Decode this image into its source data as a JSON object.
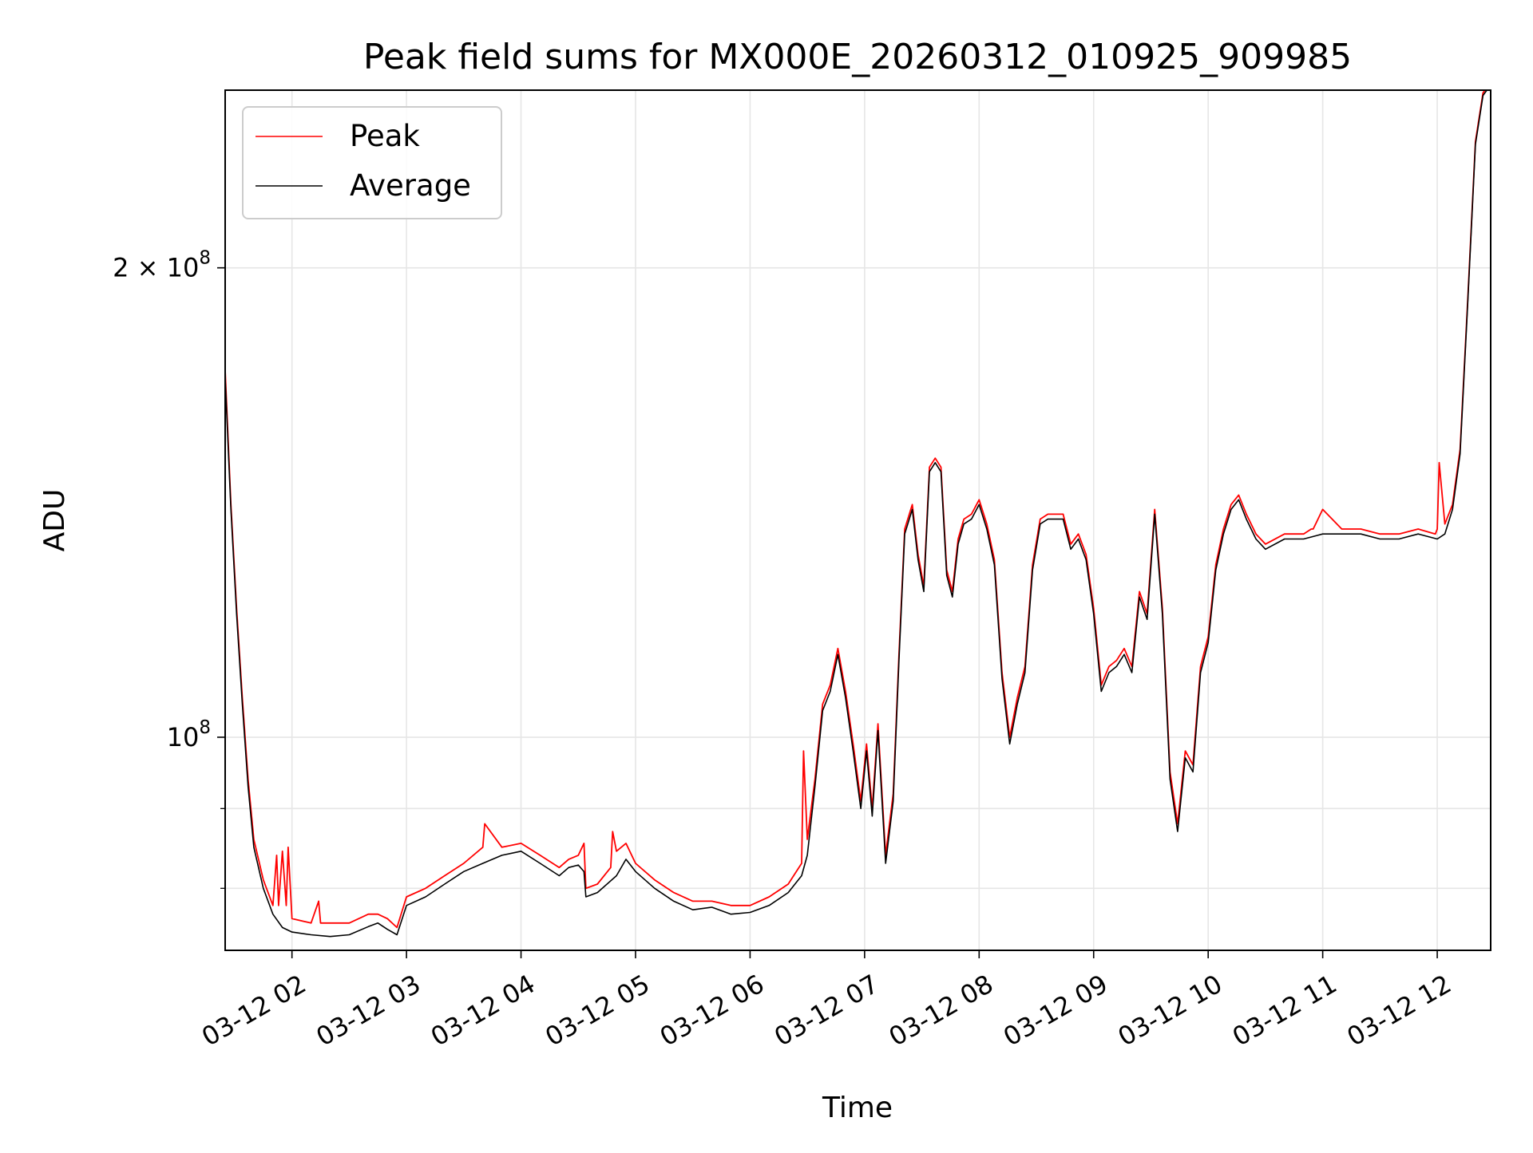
{
  "chart_data": {
    "type": "line",
    "title": "Peak field sums for MX000E_20260312_010925_909985",
    "xlabel": "Time",
    "ylabel": "ADU",
    "y_scale": "log",
    "xlim": [
      "2026-03-12 01:25",
      "2026-03-12 12:28"
    ],
    "ylim": [
      73000000,
      260000000
    ],
    "grid": true,
    "legend": {
      "placement": "top-left",
      "entries": [
        "Peak",
        "Average"
      ]
    },
    "x_ticks": [
      "03-12 02",
      "03-12 03",
      "03-12 04",
      "03-12 05",
      "03-12 06",
      "03-12 07",
      "03-12 08",
      "03-12 09",
      "03-12 10",
      "03-12 11",
      "03-12 12"
    ],
    "y_ticks": [
      {
        "value": 100000000,
        "mantissa": "",
        "exponent": "8"
      },
      {
        "value": 200000000,
        "mantissa": "2",
        "exponent": "8"
      }
    ],
    "colors": {
      "peak": "#ff0000",
      "average": "#000000"
    },
    "series": [
      {
        "name": "Average",
        "color": "#000000",
        "x": [
          "2026-03-12 01:25",
          "2026-03-12 01:28",
          "2026-03-12 01:31",
          "2026-03-12 01:34",
          "2026-03-12 01:37",
          "2026-03-12 01:40",
          "2026-03-12 01:45",
          "2026-03-12 01:50",
          "2026-03-12 01:55",
          "2026-03-12 02:00",
          "2026-03-12 02:10",
          "2026-03-12 02:20",
          "2026-03-12 02:30",
          "2026-03-12 02:40",
          "2026-03-12 02:45",
          "2026-03-12 02:50",
          "2026-03-12 02:55",
          "2026-03-12 03:00",
          "2026-03-12 03:10",
          "2026-03-12 03:20",
          "2026-03-12 03:30",
          "2026-03-12 03:40",
          "2026-03-12 03:50",
          "2026-03-12 04:00",
          "2026-03-12 04:10",
          "2026-03-12 04:20",
          "2026-03-12 04:25",
          "2026-03-12 04:30",
          "2026-03-12 04:33",
          "2026-03-12 04:34",
          "2026-03-12 04:40",
          "2026-03-12 04:50",
          "2026-03-12 04:55",
          "2026-03-12 05:00",
          "2026-03-12 05:10",
          "2026-03-12 05:20",
          "2026-03-12 05:30",
          "2026-03-12 05:40",
          "2026-03-12 05:50",
          "2026-03-12 06:00",
          "2026-03-12 06:10",
          "2026-03-12 06:20",
          "2026-03-12 06:27",
          "2026-03-12 06:30",
          "2026-03-12 06:34",
          "2026-03-12 06:38",
          "2026-03-12 06:42",
          "2026-03-12 06:46",
          "2026-03-12 06:50",
          "2026-03-12 06:54",
          "2026-03-12 06:58",
          "2026-03-12 07:01",
          "2026-03-12 07:04",
          "2026-03-12 07:07",
          "2026-03-12 07:11",
          "2026-03-12 07:15",
          "2026-03-12 07:18",
          "2026-03-12 07:21",
          "2026-03-12 07:25",
          "2026-03-12 07:28",
          "2026-03-12 07:31",
          "2026-03-12 07:34",
          "2026-03-12 07:37",
          "2026-03-12 07:40",
          "2026-03-12 07:43",
          "2026-03-12 07:46",
          "2026-03-12 07:49",
          "2026-03-12 07:52",
          "2026-03-12 07:56",
          "2026-03-12 08:00",
          "2026-03-12 08:04",
          "2026-03-12 08:08",
          "2026-03-12 08:12",
          "2026-03-12 08:16",
          "2026-03-12 08:20",
          "2026-03-12 08:24",
          "2026-03-12 08:28",
          "2026-03-12 08:32",
          "2026-03-12 08:36",
          "2026-03-12 08:40",
          "2026-03-12 08:44",
          "2026-03-12 08:48",
          "2026-03-12 08:52",
          "2026-03-12 08:56",
          "2026-03-12 09:00",
          "2026-03-12 09:04",
          "2026-03-12 09:08",
          "2026-03-12 09:12",
          "2026-03-12 09:16",
          "2026-03-12 09:20",
          "2026-03-12 09:24",
          "2026-03-12 09:28",
          "2026-03-12 09:32",
          "2026-03-12 09:36",
          "2026-03-12 09:40",
          "2026-03-12 09:44",
          "2026-03-12 09:48",
          "2026-03-12 09:52",
          "2026-03-12 09:56",
          "2026-03-12 10:00",
          "2026-03-12 10:04",
          "2026-03-12 10:08",
          "2026-03-12 10:12",
          "2026-03-12 10:16",
          "2026-03-12 10:20",
          "2026-03-12 10:25",
          "2026-03-12 10:30",
          "2026-03-12 10:40",
          "2026-03-12 10:50",
          "2026-03-12 11:00",
          "2026-03-12 11:10",
          "2026-03-12 11:20",
          "2026-03-12 11:30",
          "2026-03-12 11:40",
          "2026-03-12 11:50",
          "2026-03-12 12:00",
          "2026-03-12 12:04",
          "2026-03-12 12:08",
          "2026-03-12 12:12",
          "2026-03-12 12:16",
          "2026-03-12 12:20",
          "2026-03-12 12:24",
          "2026-03-12 12:28"
        ],
        "values": [
          170000000,
          140000000,
          120000000,
          105000000,
          93000000,
          85000000,
          80000000,
          77000000,
          75500000,
          75000000,
          74700000,
          74500000,
          74700000,
          75600000,
          76000000,
          75300000,
          74700000,
          78000000,
          79000000,
          80500000,
          82000000,
          83000000,
          84000000,
          84500000,
          83000000,
          81500000,
          82500000,
          82800000,
          82000000,
          79000000,
          79500000,
          81500000,
          83500000,
          82000000,
          80000000,
          78500000,
          77500000,
          77800000,
          77000000,
          77200000,
          78000000,
          79500000,
          81500000,
          84000000,
          93000000,
          104000000,
          107000000,
          113000000,
          106000000,
          98000000,
          90000000,
          98000000,
          89000000,
          101000000,
          83000000,
          91000000,
          112000000,
          135000000,
          140000000,
          130000000,
          124000000,
          148000000,
          150000000,
          148000000,
          127000000,
          123000000,
          133000000,
          137000000,
          138000000,
          141000000,
          136000000,
          129000000,
          109000000,
          99000000,
          105000000,
          110000000,
          128000000,
          137000000,
          138000000,
          138000000,
          138000000,
          132000000,
          134000000,
          130000000,
          120000000,
          107000000,
          110000000,
          111000000,
          113000000,
          110000000,
          123000000,
          119000000,
          139000000,
          120000000,
          94000000,
          87000000,
          97000000,
          95000000,
          110000000,
          115000000,
          128000000,
          135000000,
          140000000,
          142000000,
          138000000,
          134000000,
          132000000,
          134000000,
          134000000,
          135000000,
          135000000,
          135000000,
          134000000,
          134000000,
          135000000,
          134000000,
          135000000,
          140000000,
          152000000,
          190000000,
          240000000,
          258000000,
          262000000
        ]
      },
      {
        "name": "Peak",
        "color": "#ff0000",
        "x": [
          "2026-03-12 01:25",
          "2026-03-12 01:28",
          "2026-03-12 01:31",
          "2026-03-12 01:34",
          "2026-03-12 01:37",
          "2026-03-12 01:40",
          "2026-03-12 01:45",
          "2026-03-12 01:50",
          "2026-03-12 01:52",
          "2026-03-12 01:53",
          "2026-03-12 01:55",
          "2026-03-12 01:57",
          "2026-03-12 01:58",
          "2026-03-12 02:00",
          "2026-03-12 02:10",
          "2026-03-12 02:14",
          "2026-03-12 02:15",
          "2026-03-12 02:20",
          "2026-03-12 02:30",
          "2026-03-12 02:40",
          "2026-03-12 02:45",
          "2026-03-12 02:50",
          "2026-03-12 02:55",
          "2026-03-12 03:00",
          "2026-03-12 03:10",
          "2026-03-12 03:20",
          "2026-03-12 03:30",
          "2026-03-12 03:40",
          "2026-03-12 03:41",
          "2026-03-12 03:50",
          "2026-03-12 04:00",
          "2026-03-12 04:10",
          "2026-03-12 04:20",
          "2026-03-12 04:25",
          "2026-03-12 04:30",
          "2026-03-12 04:33",
          "2026-03-12 04:34",
          "2026-03-12 04:40",
          "2026-03-12 04:47",
          "2026-03-12 04:48",
          "2026-03-12 04:50",
          "2026-03-12 04:55",
          "2026-03-12 05:00",
          "2026-03-12 05:10",
          "2026-03-12 05:20",
          "2026-03-12 05:30",
          "2026-03-12 05:40",
          "2026-03-12 05:50",
          "2026-03-12 06:00",
          "2026-03-12 06:10",
          "2026-03-12 06:20",
          "2026-03-12 06:27",
          "2026-03-12 06:28",
          "2026-03-12 06:30",
          "2026-03-12 06:34",
          "2026-03-12 06:38",
          "2026-03-12 06:42",
          "2026-03-12 06:46",
          "2026-03-12 06:50",
          "2026-03-12 06:54",
          "2026-03-12 06:58",
          "2026-03-12 07:01",
          "2026-03-12 07:04",
          "2026-03-12 07:07",
          "2026-03-12 07:11",
          "2026-03-12 07:15",
          "2026-03-12 07:18",
          "2026-03-12 07:21",
          "2026-03-12 07:25",
          "2026-03-12 07:28",
          "2026-03-12 07:31",
          "2026-03-12 07:34",
          "2026-03-12 07:37",
          "2026-03-12 07:40",
          "2026-03-12 07:43",
          "2026-03-12 07:46",
          "2026-03-12 07:49",
          "2026-03-12 07:52",
          "2026-03-12 07:56",
          "2026-03-12 08:00",
          "2026-03-12 08:04",
          "2026-03-12 08:08",
          "2026-03-12 08:12",
          "2026-03-12 08:16",
          "2026-03-12 08:20",
          "2026-03-12 08:24",
          "2026-03-12 08:28",
          "2026-03-12 08:32",
          "2026-03-12 08:36",
          "2026-03-12 08:40",
          "2026-03-12 08:44",
          "2026-03-12 08:48",
          "2026-03-12 08:52",
          "2026-03-12 08:56",
          "2026-03-12 09:00",
          "2026-03-12 09:04",
          "2026-03-12 09:08",
          "2026-03-12 09:12",
          "2026-03-12 09:16",
          "2026-03-12 09:20",
          "2026-03-12 09:24",
          "2026-03-12 09:28",
          "2026-03-12 09:32",
          "2026-03-12 09:36",
          "2026-03-12 09:40",
          "2026-03-12 09:44",
          "2026-03-12 09:48",
          "2026-03-12 09:52",
          "2026-03-12 09:56",
          "2026-03-12 10:00",
          "2026-03-12 10:04",
          "2026-03-12 10:08",
          "2026-03-12 10:12",
          "2026-03-12 10:16",
          "2026-03-12 10:20",
          "2026-03-12 10:25",
          "2026-03-12 10:30",
          "2026-03-12 10:40",
          "2026-03-12 10:50",
          "2026-03-12 10:54",
          "2026-03-12 10:55",
          "2026-03-12 11:00",
          "2026-03-12 11:10",
          "2026-03-12 11:20",
          "2026-03-12 11:30",
          "2026-03-12 11:40",
          "2026-03-12 11:50",
          "2026-03-12 11:59",
          "2026-03-12 12:00",
          "2026-03-12 12:01",
          "2026-03-12 12:04",
          "2026-03-12 12:08",
          "2026-03-12 12:12",
          "2026-03-12 12:16",
          "2026-03-12 12:20",
          "2026-03-12 12:24",
          "2026-03-12 12:28"
        ],
        "values": [
          172000000,
          141000000,
          121000000,
          106000000,
          94000000,
          86000000,
          81000000,
          78000000,
          84000000,
          78000000,
          84500000,
          78000000,
          85000000,
          76500000,
          76000000,
          78500000,
          76000000,
          76000000,
          76000000,
          77000000,
          77000000,
          76500000,
          75500000,
          79000000,
          80000000,
          81500000,
          83000000,
          85000000,
          88000000,
          85000000,
          85500000,
          84000000,
          82500000,
          83500000,
          84000000,
          85500000,
          80000000,
          80500000,
          82500000,
          87000000,
          84500000,
          85500000,
          83000000,
          81000000,
          79500000,
          78500000,
          78500000,
          78000000,
          78000000,
          79000000,
          80500000,
          83000000,
          98000000,
          86000000,
          94000000,
          105000000,
          108000000,
          114000000,
          107000000,
          99000000,
          91000000,
          99000000,
          90000000,
          102000000,
          84000000,
          92000000,
          113000000,
          136000000,
          141000000,
          131000000,
          125000000,
          149000000,
          151000000,
          149000000,
          128000000,
          124000000,
          134000000,
          138000000,
          139000000,
          142000000,
          137000000,
          130000000,
          110000000,
          100000000,
          106000000,
          111000000,
          129000000,
          138000000,
          139000000,
          139000000,
          139000000,
          133000000,
          135000000,
          131000000,
          121000000,
          108000000,
          111000000,
          112000000,
          114000000,
          111000000,
          124000000,
          120000000,
          140000000,
          121000000,
          95000000,
          88000000,
          98000000,
          96000000,
          111000000,
          116000000,
          129000000,
          136000000,
          141000000,
          143000000,
          139000000,
          135000000,
          133000000,
          135000000,
          135000000,
          136000000,
          136000000,
          140000000,
          136000000,
          136000000,
          135000000,
          135000000,
          136000000,
          135000000,
          136000000,
          150000000,
          137000000,
          141000000,
          153000000,
          191000000,
          241000000,
          259000000,
          263000000
        ]
      }
    ]
  }
}
